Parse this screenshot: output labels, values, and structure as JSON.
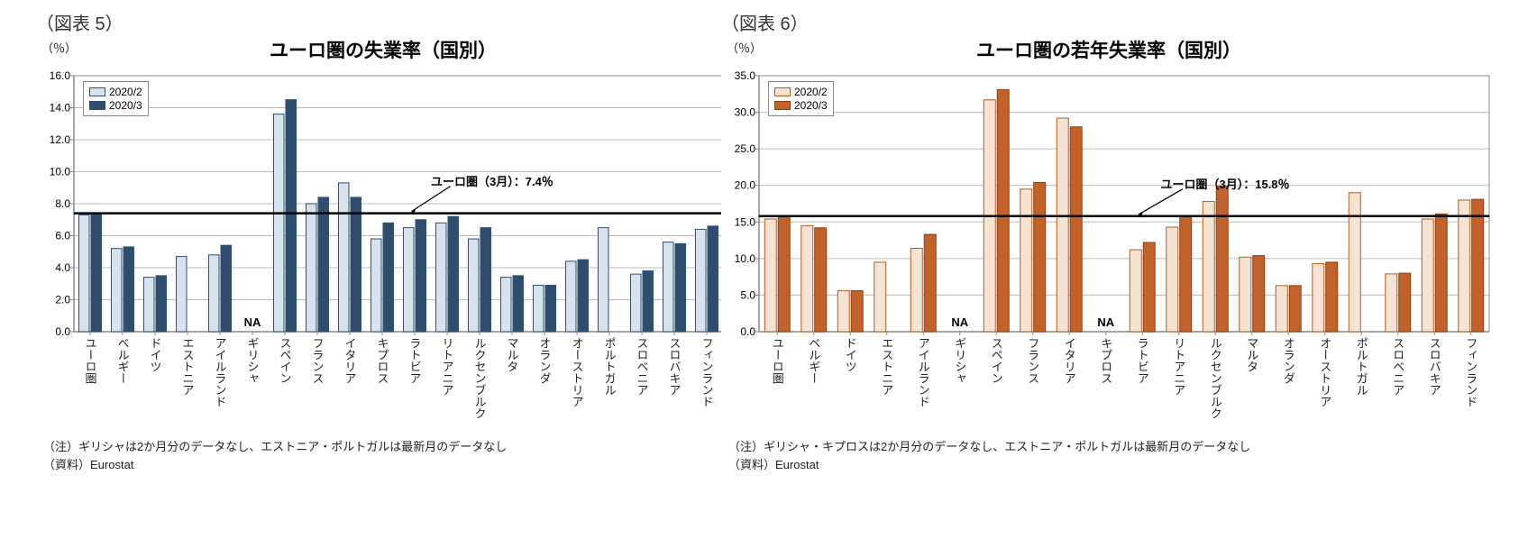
{
  "chart1": {
    "fig_label": "（図表 5）",
    "unit": "（％）",
    "title": "ユーロ圏の失業率（国別）",
    "ylim": [
      0,
      16
    ],
    "ystep": 2,
    "legend": [
      {
        "label": "2020/2",
        "fill": "#d6e3ef",
        "border": "#2f4e6f"
      },
      {
        "label": "2020/3",
        "fill": "#2f4e6f",
        "border": "#2f4e6f"
      }
    ],
    "ref": {
      "value": 7.4,
      "label": "ユーロ圏（3月）：7.4％"
    },
    "categories": [
      "ユーロ圏",
      "ベルギー",
      "ドイツ",
      "エストニア",
      "アイルランド",
      "ギリシャ",
      "スペイン",
      "フランス",
      "イタリア",
      "キプロス",
      "ラトビア",
      "リトアニア",
      "ルクセンブルク",
      "マルタ",
      "オランダ",
      "オーストリア",
      "ポルトガル",
      "スロベニア",
      "スロバキア",
      "フィンランド"
    ],
    "series": [
      {
        "key": "2020/2",
        "fill": "#d6e3ef",
        "border": "#2f4e6f",
        "values": [
          7.3,
          5.2,
          3.4,
          4.7,
          4.8,
          null,
          13.6,
          8.0,
          9.3,
          5.8,
          6.5,
          6.8,
          5.8,
          3.4,
          2.9,
          4.4,
          6.5,
          3.6,
          5.6,
          6.4
        ]
      },
      {
        "key": "2020/3",
        "fill": "#2f4e6f",
        "border": "#2f4e6f",
        "values": [
          7.4,
          5.3,
          3.5,
          null,
          5.4,
          null,
          14.5,
          8.4,
          8.4,
          6.8,
          7.0,
          7.2,
          6.5,
          3.5,
          2.9,
          4.5,
          null,
          3.8,
          5.5,
          6.6
        ]
      }
    ],
    "na_indices": [
      5
    ],
    "note": "（注）ギリシャは2か月分のデータなし、エストニア・ポルトガルは最新月のデータなし",
    "source": "（資料）Eurostat",
    "bg": "#ffffff",
    "grid": "#bbbbbb"
  },
  "chart2": {
    "fig_label": "（図表 6）",
    "unit": "（％）",
    "title": "ユーロ圏の若年失業率（国別）",
    "ylim": [
      0,
      35
    ],
    "ystep": 5,
    "legend": [
      {
        "label": "2020/2",
        "fill": "#f7e3d2",
        "border": "#b55a1e"
      },
      {
        "label": "2020/3",
        "fill": "#c2622a",
        "border": "#8a3e12"
      }
    ],
    "ref": {
      "value": 15.8,
      "label": "ユーロ圏（3月）：15.8％"
    },
    "categories": [
      "ユーロ圏",
      "ベルギー",
      "ドイツ",
      "エストニア",
      "アイルランド",
      "ギリシャ",
      "スペイン",
      "フランス",
      "イタリア",
      "キプロス",
      "ラトビア",
      "リトアニア",
      "ルクセンブルク",
      "マルタ",
      "オランダ",
      "オーストリア",
      "ポルトガル",
      "スロベニア",
      "スロバキア",
      "フィンランド"
    ],
    "series": [
      {
        "key": "2020/2",
        "fill": "#f7e3d2",
        "border": "#b55a1e",
        "values": [
          15.4,
          14.5,
          5.6,
          9.5,
          11.4,
          null,
          31.7,
          19.5,
          29.2,
          null,
          11.2,
          14.3,
          17.8,
          10.2,
          6.3,
          9.3,
          19.0,
          7.9,
          15.4,
          18.0
        ]
      },
      {
        "key": "2020/3",
        "fill": "#c2622a",
        "border": "#8a3e12",
        "values": [
          15.8,
          14.2,
          5.6,
          null,
          13.3,
          null,
          33.1,
          20.4,
          28.0,
          null,
          12.2,
          15.8,
          19.9,
          10.4,
          6.3,
          9.5,
          null,
          8.0,
          16.1,
          18.1
        ]
      }
    ],
    "na_indices": [
      5,
      9
    ],
    "note": "（注）ギリシャ・キプロスは2か月分のデータなし、エストニア・ポルトガルは最新月のデータなし",
    "source": "（資料）Eurostat",
    "bg": "#ffffff",
    "grid": "#bbbbbb"
  }
}
